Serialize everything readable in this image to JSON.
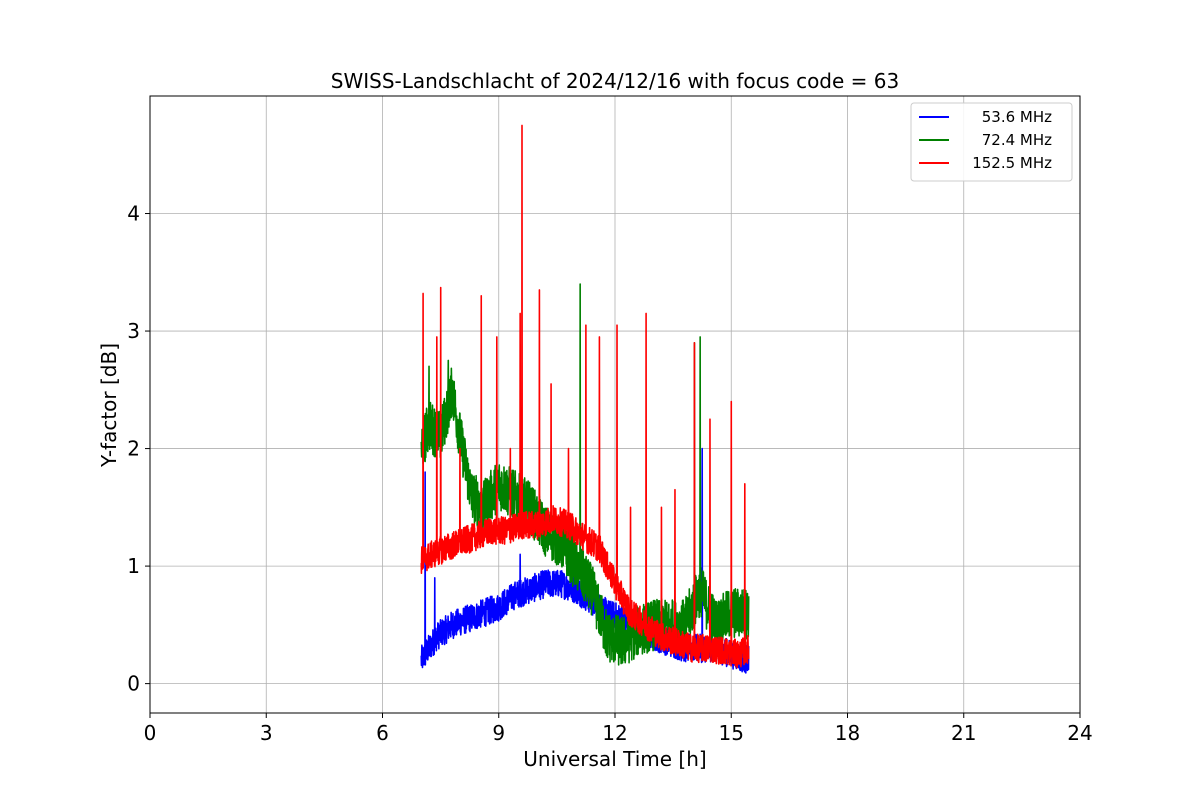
{
  "chart_data": {
    "type": "line",
    "title": "SWISS-Landschlacht of 2024/12/16 with focus code = 63",
    "xlabel": "Universal Time [h]",
    "ylabel": "Y-factor [dB]",
    "xlim": [
      0,
      24
    ],
    "ylim": [
      -0.25,
      5.0
    ],
    "xticks": [
      0,
      3,
      6,
      9,
      12,
      15,
      18,
      21,
      24
    ],
    "yticks": [
      0,
      1,
      2,
      3,
      4
    ],
    "grid": true,
    "legend": "top-right",
    "series": [
      {
        "name": "53.6 MHz",
        "color": "#0000ff",
        "x": [
          7.0,
          7.2,
          7.4,
          7.8,
          8.2,
          8.6,
          9.0,
          9.4,
          9.8,
          10.2,
          10.6,
          11.0,
          11.4,
          11.8,
          12.2,
          12.6,
          13.0,
          13.4,
          13.8,
          14.2,
          14.6,
          15.0,
          15.45
        ],
        "y": [
          0.2,
          0.3,
          0.4,
          0.5,
          0.55,
          0.6,
          0.65,
          0.75,
          0.8,
          0.85,
          0.85,
          0.8,
          0.7,
          0.6,
          0.55,
          0.45,
          0.4,
          0.35,
          0.3,
          0.3,
          0.3,
          0.25,
          0.2
        ],
        "spikes": [
          [
            7.1,
            1.8
          ],
          [
            7.35,
            0.9
          ],
          [
            9.55,
            1.1
          ],
          [
            14.25,
            2.0
          ]
        ]
      },
      {
        "name": "72.4 MHz",
        "color": "#008000",
        "x": [
          7.0,
          7.2,
          7.5,
          7.8,
          8.0,
          8.3,
          8.6,
          9.0,
          9.4,
          9.8,
          10.2,
          10.6,
          11.0,
          11.4,
          11.8,
          12.2,
          12.6,
          13.0,
          13.4,
          13.8,
          14.2,
          14.6,
          15.0,
          15.45
        ],
        "y": [
          2.0,
          2.2,
          2.1,
          2.5,
          2.1,
          1.6,
          1.5,
          1.7,
          1.6,
          1.5,
          1.3,
          1.2,
          1.0,
          0.8,
          0.4,
          0.35,
          0.45,
          0.5,
          0.5,
          0.5,
          0.8,
          0.5,
          0.6,
          0.6
        ],
        "spikes": [
          [
            7.2,
            2.7
          ],
          [
            7.7,
            2.75
          ],
          [
            11.1,
            3.4
          ],
          [
            14.05,
            2.9
          ],
          [
            14.2,
            2.95
          ]
        ]
      },
      {
        "name": "152.5 MHz",
        "color": "#ff0000",
        "x": [
          7.0,
          7.3,
          7.6,
          8.0,
          8.4,
          8.8,
          9.2,
          9.6,
          10.0,
          10.4,
          10.8,
          11.2,
          11.6,
          12.0,
          12.4,
          12.8,
          13.2,
          13.6,
          14.0,
          14.4,
          14.8,
          15.2,
          15.45
        ],
        "y": [
          1.05,
          1.1,
          1.15,
          1.2,
          1.25,
          1.3,
          1.3,
          1.35,
          1.35,
          1.4,
          1.35,
          1.25,
          1.15,
          0.85,
          0.6,
          0.5,
          0.4,
          0.35,
          0.3,
          0.3,
          0.28,
          0.25,
          0.3
        ],
        "spikes": [
          [
            7.05,
            3.32
          ],
          [
            7.4,
            2.95
          ],
          [
            7.5,
            3.37
          ],
          [
            8.0,
            2.0
          ],
          [
            8.55,
            3.3
          ],
          [
            8.95,
            2.95
          ],
          [
            9.3,
            2.0
          ],
          [
            9.55,
            3.15
          ],
          [
            9.6,
            4.75
          ],
          [
            10.05,
            3.35
          ],
          [
            10.35,
            2.55
          ],
          [
            10.8,
            2.0
          ],
          [
            11.25,
            3.05
          ],
          [
            11.6,
            2.95
          ],
          [
            12.05,
            3.05
          ],
          [
            12.4,
            1.5
          ],
          [
            12.8,
            3.15
          ],
          [
            13.2,
            1.5
          ],
          [
            13.55,
            1.65
          ],
          [
            14.05,
            2.9
          ],
          [
            14.45,
            2.25
          ],
          [
            15.0,
            2.4
          ],
          [
            15.35,
            1.7
          ]
        ]
      }
    ]
  }
}
